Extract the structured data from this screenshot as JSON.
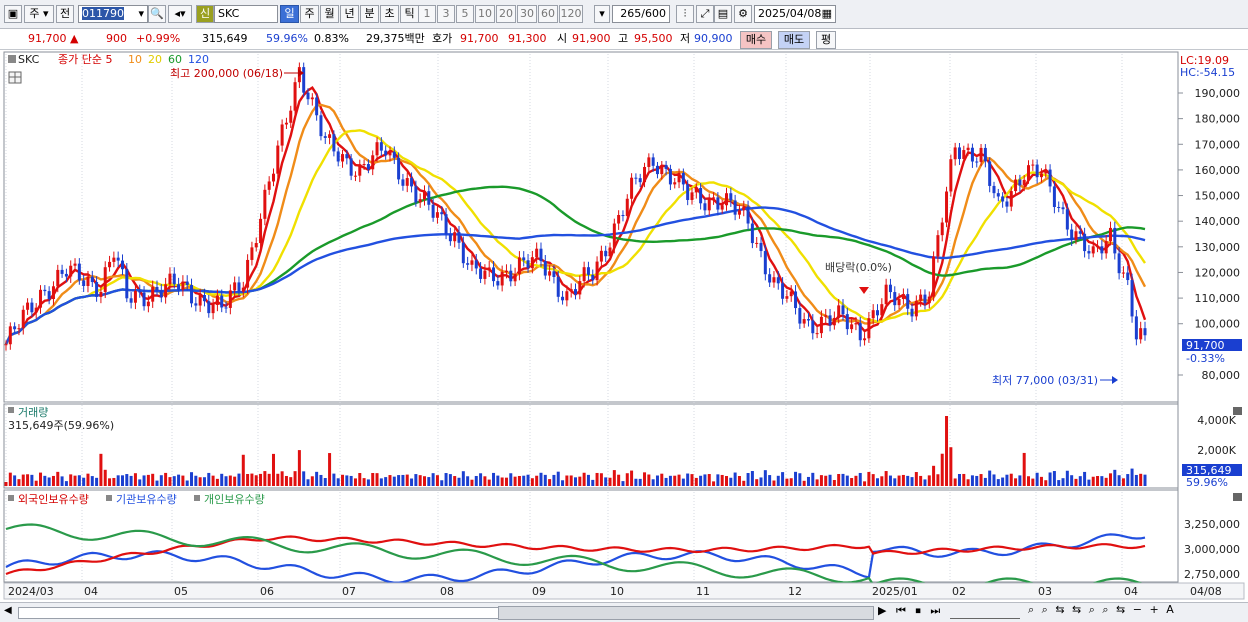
{
  "toolbar": {
    "period_button": "주",
    "prev_button": "전",
    "code_value": "011790",
    "stock_name": "SKC",
    "credit_badge": "신",
    "interval_tabs": [
      "일",
      "주",
      "월",
      "년",
      "분",
      "초",
      "틱"
    ],
    "active_tab": "일",
    "minute_buttons": [
      "1",
      "3",
      "5",
      "10",
      "20",
      "30",
      "60",
      "120"
    ],
    "count_value": "265",
    "count_total": "/600",
    "date_value": "2025/04/08"
  },
  "quote": {
    "price": "91,700",
    "change": "900",
    "change_pct": "+0.99%",
    "volume": "315,649",
    "volume_ratio": "59.96%",
    "turnover": "0.83%",
    "amount": "29,375백만",
    "ask_label": "호가",
    "ask1": "91,700",
    "ask2": "91,300",
    "open_label": "시",
    "open": "91,900",
    "high_label": "고",
    "high": "95,500",
    "low_label": "저",
    "low": "90,900",
    "buy_button": "매수",
    "sell_button": "매도",
    "eval_button": "평"
  },
  "price_panel": {
    "legend_name": "SKC",
    "ma_label": "종가 단순 5",
    "ma_periods": [
      "10",
      "20",
      "60",
      "120"
    ],
    "ma_colors": [
      "#e01010",
      "#f08c18",
      "#f0e000",
      "#1a9a2a",
      "#2250e0"
    ],
    "high_note": "최고 200,000 (06/18)",
    "low_note": "최저 77,000 (03/31)",
    "dividend_note": "배당락(0.0%)",
    "lc": "LC:19.09",
    "hc": "HC:-54.15",
    "current_price_tag": "91,700",
    "current_change_tag": "-0.33%",
    "y_ticks": [
      "190,000",
      "180,000",
      "170,000",
      "160,000",
      "150,000",
      "140,000",
      "130,000",
      "120,000",
      "110,000",
      "100,000",
      "80,000"
    ]
  },
  "volume_panel": {
    "title": "거래량",
    "summary": "315,649주(59.96%)",
    "y_ticks": [
      "4,000K",
      "2,000K"
    ],
    "current_tag": "315,649",
    "current_pct": "59.96%"
  },
  "holdings_panel": {
    "series": [
      "외국인보유수량",
      "기관보유수량",
      "개인보유수량"
    ],
    "y_ticks": [
      "3,250,000",
      "3,000,000",
      "2,750,000"
    ]
  },
  "x_axis": [
    "2024/03",
    "04",
    "05",
    "06",
    "07",
    "08",
    "09",
    "10",
    "11",
    "12",
    "2025/01",
    "02",
    "03",
    "04",
    "04/08"
  ],
  "colors": {
    "up": "#e01010",
    "down": "#1a3fd0",
    "foreign": "#2250e0",
    "institution": "#e01010",
    "individual": "#2a9a4a"
  }
}
